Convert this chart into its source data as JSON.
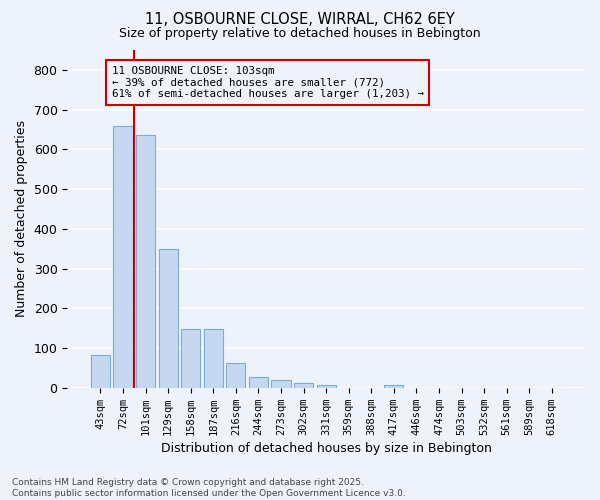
{
  "title_line1": "11, OSBOURNE CLOSE, WIRRAL, CH62 6EY",
  "title_line2": "Size of property relative to detached houses in Bebington",
  "xlabel": "Distribution of detached houses by size in Bebington",
  "ylabel": "Number of detached properties",
  "categories": [
    "43sqm",
    "72sqm",
    "101sqm",
    "129sqm",
    "158sqm",
    "187sqm",
    "216sqm",
    "244sqm",
    "273sqm",
    "302sqm",
    "331sqm",
    "359sqm",
    "388sqm",
    "417sqm",
    "446sqm",
    "474sqm",
    "503sqm",
    "532sqm",
    "561sqm",
    "589sqm",
    "618sqm"
  ],
  "values": [
    82,
    660,
    635,
    350,
    148,
    148,
    62,
    28,
    20,
    12,
    8,
    0,
    0,
    7,
    0,
    0,
    0,
    0,
    0,
    0,
    0
  ],
  "bar_color": "#c5d8f0",
  "bar_edge_color": "#7aadd4",
  "vline_x": 2,
  "vline_color": "#cc0000",
  "annotation_box_text": "11 OSBOURNE CLOSE: 103sqm\n← 39% of detached houses are smaller (772)\n61% of semi-detached houses are larger (1,203) →",
  "box_edge_color": "#cc0000",
  "ylim": [
    0,
    850
  ],
  "yticks": [
    0,
    100,
    200,
    300,
    400,
    500,
    600,
    700,
    800
  ],
  "background_color": "#eef2fa",
  "grid_color": "#ffffff",
  "footer_line1": "Contains HM Land Registry data © Crown copyright and database right 2025.",
  "footer_line2": "Contains public sector information licensed under the Open Government Licence v3.0."
}
